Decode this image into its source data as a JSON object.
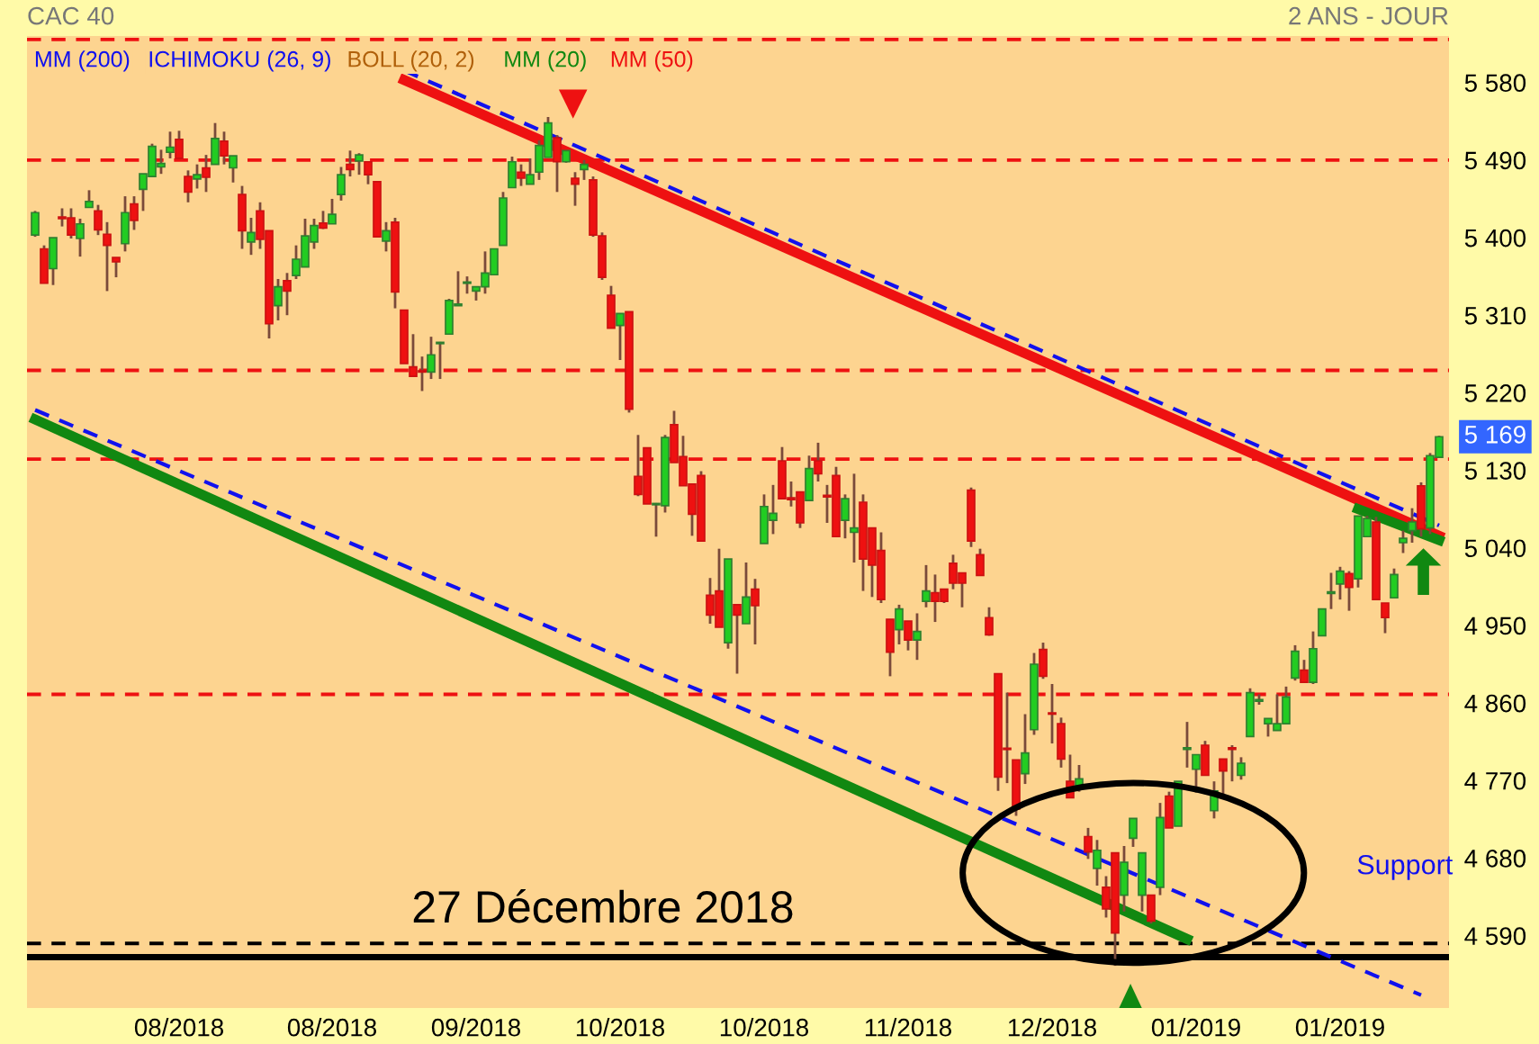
{
  "chart_data": {
    "type": "candlestick",
    "title": "CAC 40",
    "subtitle": "2 ANS - JOUR",
    "categories": [
      null,
      null,
      null,
      null,
      null,
      null,
      null,
      null,
      null,
      null,
      null,
      null,
      null,
      null,
      null,
      null,
      "08/2018",
      null,
      null,
      null,
      null,
      null,
      null,
      null,
      null,
      null,
      null,
      null,
      null,
      null,
      null,
      null,
      null,
      "08/2018",
      null,
      null,
      null,
      null,
      null,
      null,
      null,
      null,
      null,
      null,
      null,
      null,
      null,
      null,
      null,
      "09/2018",
      null,
      null,
      null,
      null,
      null,
      null,
      null,
      null,
      null,
      null,
      null,
      null,
      null,
      null,
      null,
      "10/2018",
      null,
      null,
      null,
      null,
      null,
      null,
      null,
      null,
      null,
      null,
      null,
      null,
      null,
      null,
      null,
      "10/2018",
      null,
      null,
      null,
      null,
      null,
      null,
      null,
      null,
      null,
      null,
      null,
      null,
      null,
      null,
      null,
      "11/2018",
      null,
      null,
      null,
      null,
      null,
      null,
      null,
      null,
      null,
      null,
      null,
      null,
      null,
      null,
      null,
      "12/2018",
      null,
      null,
      null,
      null,
      null,
      null,
      null,
      null,
      null,
      null,
      null,
      null,
      null,
      null,
      null,
      "01/2019",
      null,
      null,
      null,
      null,
      null,
      null,
      null,
      null,
      null,
      null,
      null,
      null,
      null,
      null,
      null,
      "01/2019",
      null,
      null,
      null,
      null,
      null,
      null,
      null,
      null,
      null,
      null,
      null
    ],
    "ohlc": [
      [
        5403,
        5431,
        5401,
        5429
      ],
      [
        5387,
        5391,
        5347,
        5347
      ],
      [
        5364,
        5400,
        5345,
        5400
      ],
      [
        5424,
        5434,
        5413,
        5422
      ],
      [
        5423,
        5434,
        5399,
        5403
      ],
      [
        5399,
        5422,
        5378,
        5416
      ],
      [
        5435,
        5455,
        5435,
        5442
      ],
      [
        5431,
        5438,
        5403,
        5409
      ],
      [
        5404,
        5418,
        5338,
        5391
      ],
      [
        5377,
        5377,
        5354,
        5372
      ],
      [
        5393,
        5448,
        5384,
        5429
      ],
      [
        5439,
        5448,
        5409,
        5420
      ],
      [
        5456,
        5474,
        5431,
        5474
      ],
      [
        5471,
        5509,
        5471,
        5506
      ],
      [
        5482,
        5502,
        5474,
        5486
      ],
      [
        5499,
        5523,
        5492,
        5505
      ],
      [
        5514,
        5524,
        5492,
        5492
      ],
      [
        5471,
        5478,
        5441,
        5453
      ],
      [
        5468,
        5485,
        5457,
        5473
      ],
      [
        5481,
        5496,
        5453,
        5470
      ],
      [
        5485,
        5533,
        5485,
        5515
      ],
      [
        5512,
        5523,
        5485,
        5495
      ],
      [
        5481,
        5495,
        5464,
        5495
      ],
      [
        5450,
        5460,
        5387,
        5408
      ],
      [
        5395,
        5423,
        5380,
        5406
      ],
      [
        5431,
        5441,
        5387,
        5398
      ],
      [
        5408,
        5408,
        5283,
        5300
      ],
      [
        5321,
        5352,
        5304,
        5343
      ],
      [
        5350,
        5359,
        5310,
        5338
      ],
      [
        5356,
        5391,
        5352,
        5375
      ],
      [
        5366,
        5422,
        5366,
        5402
      ],
      [
        5395,
        5422,
        5387,
        5414
      ],
      [
        5417,
        5431,
        5410,
        5411
      ],
      [
        5416,
        5445,
        5416,
        5427
      ],
      [
        5450,
        5482,
        5443,
        5473
      ],
      [
        5485,
        5501,
        5471,
        5479
      ],
      [
        5489,
        5498,
        5473,
        5496
      ],
      [
        5488,
        5488,
        5462,
        5473
      ],
      [
        5465,
        5465,
        5401,
        5401
      ],
      [
        5396,
        5418,
        5384,
        5408
      ],
      [
        5418,
        5423,
        5318,
        5337
      ],
      [
        5316,
        5316,
        5254,
        5254
      ],
      [
        5250,
        5288,
        5239,
        5239
      ],
      [
        5245,
        5262,
        5222,
        5244
      ],
      [
        5244,
        5285,
        5236,
        5264
      ],
      [
        5277,
        5279,
        5236,
        5278
      ],
      [
        5288,
        5329,
        5288,
        5327
      ],
      [
        5321,
        5361,
        5321,
        5323
      ],
      [
        5347,
        5355,
        5335,
        5348
      ],
      [
        5338,
        5343,
        5327,
        5343
      ],
      [
        5343,
        5384,
        5335,
        5359
      ],
      [
        5357,
        5387,
        5357,
        5387
      ],
      [
        5391,
        5453,
        5391,
        5446
      ],
      [
        5458,
        5494,
        5458,
        5488
      ],
      [
        5476,
        5485,
        5460,
        5469
      ],
      [
        5462,
        5492,
        5462,
        5473
      ],
      [
        5476,
        5513,
        5467,
        5507
      ],
      [
        5493,
        5540,
        5493,
        5533
      ],
      [
        5516,
        5519,
        5453,
        5488
      ],
      [
        5488,
        5501,
        5487,
        5501
      ],
      [
        5469,
        5476,
        5437,
        5462
      ],
      [
        5479,
        5490,
        5467,
        5485
      ],
      [
        5467,
        5471,
        5401,
        5403
      ],
      [
        5402,
        5406,
        5351,
        5354
      ],
      [
        5333,
        5344,
        5295,
        5295
      ],
      [
        5298,
        5312,
        5258,
        5312
      ],
      [
        5314,
        5314,
        5197,
        5201
      ],
      [
        5123,
        5171,
        5100,
        5102
      ],
      [
        5156,
        5156,
        5091,
        5091
      ],
      [
        5090,
        5092,
        5053,
        5091
      ],
      [
        5089,
        5171,
        5081,
        5168
      ],
      [
        5183,
        5199,
        5139,
        5139
      ],
      [
        5146,
        5170,
        5112,
        5112
      ],
      [
        5114,
        5114,
        5054,
        5079
      ],
      [
        5124,
        5129,
        5048,
        5048
      ],
      [
        4985,
        5005,
        4952,
        4962
      ],
      [
        4990,
        5039,
        4948,
        4948
      ],
      [
        4930,
        5027,
        4923,
        5027
      ],
      [
        4974,
        4974,
        4894,
        4962
      ],
      [
        4952,
        5023,
        4952,
        4983
      ],
      [
        4992,
        5004,
        4928,
        4973
      ],
      [
        5045,
        5102,
        5045,
        5088
      ],
      [
        5072,
        5113,
        5056,
        5080
      ],
      [
        5141,
        5157,
        5097,
        5097
      ],
      [
        5098,
        5117,
        5088,
        5096
      ],
      [
        5105,
        5105,
        5063,
        5069
      ],
      [
        5095,
        5147,
        5095,
        5132
      ],
      [
        5141,
        5162,
        5117,
        5126
      ],
      [
        5101,
        5113,
        5069,
        5099
      ],
      [
        5124,
        5134,
        5053,
        5053
      ],
      [
        5072,
        5102,
        5051,
        5097
      ],
      [
        5058,
        5126,
        5023,
        5063
      ],
      [
        5093,
        5102,
        4990,
        5027
      ],
      [
        5063,
        5063,
        4983,
        5020
      ],
      [
        5037,
        5058,
        4976,
        4980
      ],
      [
        4957,
        4957,
        4891,
        4919
      ],
      [
        4945,
        4974,
        4928,
        4969
      ],
      [
        4955,
        4955,
        4921,
        4933
      ],
      [
        4933,
        4964,
        4910,
        4943
      ],
      [
        4978,
        5020,
        4971,
        4990
      ],
      [
        4988,
        5009,
        4954,
        4978
      ],
      [
        4992,
        4992,
        4976,
        4978
      ],
      [
        5022,
        5032,
        4992,
        4999
      ],
      [
        5011,
        5011,
        4971,
        4999
      ],
      [
        5107,
        5110,
        5041,
        5048
      ],
      [
        5032,
        5039,
        5008,
        5008
      ],
      [
        4959,
        4971,
        4938,
        4939
      ],
      [
        4894,
        4894,
        4758,
        4774
      ],
      [
        4807,
        4872,
        4767,
        4806
      ],
      [
        4794,
        4794,
        4729,
        4737
      ],
      [
        4778,
        4847,
        4766,
        4802
      ],
      [
        4829,
        4918,
        4823,
        4905
      ],
      [
        4922,
        4930,
        4888,
        4891
      ],
      [
        4848,
        4882,
        4813,
        4847
      ],
      [
        4836,
        4843,
        4785,
        4795
      ],
      [
        4769,
        4800,
        4750,
        4750
      ],
      [
        4762,
        4788,
        4757,
        4772
      ],
      [
        4705,
        4715,
        4679,
        4687
      ],
      [
        4668,
        4701,
        4648,
        4689
      ],
      [
        4646,
        4659,
        4611,
        4621
      ],
      [
        4686,
        4686,
        4555,
        4593
      ],
      [
        4637,
        4694,
        4618,
        4675
      ],
      [
        4703,
        4726,
        4693,
        4726
      ],
      [
        4637,
        4686,
        4618,
        4686
      ],
      [
        4637,
        4637,
        4604,
        4607
      ],
      [
        4646,
        4744,
        4637,
        4727
      ],
      [
        4752,
        4757,
        4715,
        4715
      ],
      [
        4717,
        4769,
        4717,
        4769
      ],
      [
        4806,
        4838,
        4785,
        4808
      ],
      [
        4783,
        4800,
        4756,
        4800
      ],
      [
        4811,
        4816,
        4776,
        4776
      ],
      [
        4735,
        4769,
        4726,
        4758
      ],
      [
        4795,
        4795,
        4752,
        4781
      ],
      [
        4808,
        4811,
        4769,
        4806
      ],
      [
        4776,
        4797,
        4771,
        4790
      ],
      [
        4821,
        4877,
        4821,
        4872
      ],
      [
        4862,
        4870,
        4858,
        4864
      ],
      [
        4836,
        4842,
        4821,
        4842
      ],
      [
        4828,
        4870,
        4828,
        4836
      ],
      [
        4836,
        4879,
        4836,
        4867
      ],
      [
        4889,
        4927,
        4886,
        4920
      ],
      [
        4898,
        4910,
        4884,
        4884
      ],
      [
        4884,
        4943,
        4882,
        4923
      ],
      [
        4938,
        4969,
        4938,
        4969
      ],
      [
        4987,
        5011,
        4969,
        4989
      ],
      [
        4998,
        5018,
        4980,
        5013
      ],
      [
        5010,
        5013,
        4967,
        4994
      ],
      [
        5004,
        5077,
        4994,
        5077
      ],
      [
        5053,
        5077,
        5053,
        5074
      ],
      [
        5070,
        5076,
        4980,
        4980
      ],
      [
        4976,
        4976,
        4941,
        4959
      ],
      [
        4982,
        5016,
        4982,
        5009
      ],
      [
        5046,
        5060,
        5034,
        5051
      ],
      [
        5060,
        5086,
        5046,
        5070
      ],
      [
        5112,
        5116,
        5053,
        5062
      ],
      [
        5063,
        5150,
        5056,
        5147
      ],
      [
        5145,
        5170,
        5145,
        5169
      ]
    ],
    "series": [
      {
        "type": "line",
        "color": "#ee1111",
        "line_style": "solid",
        "values": [
          null,
          null,
          null,
          null,
          null,
          null,
          null,
          null,
          null,
          null,
          null,
          null,
          null,
          null,
          null,
          null,
          null,
          null,
          null,
          null,
          null,
          null,
          null,
          null,
          null,
          null,
          null,
          null,
          null,
          null,
          null,
          null,
          null,
          null,
          null,
          null,
          null,
          null,
          null,
          null,
          null,
          5583,
          null,
          null,
          null,
          null,
          null,
          null,
          null,
          null,
          null,
          null,
          null,
          null,
          null,
          null,
          null,
          null,
          null,
          null,
          null,
          null,
          null,
          null,
          null,
          null,
          null,
          null,
          null,
          null,
          null,
          null,
          null,
          null,
          null,
          null,
          null,
          null,
          null,
          null,
          null,
          null,
          null,
          null,
          null,
          null,
          null,
          null,
          null,
          null,
          null,
          null,
          null,
          null,
          null,
          null,
          null,
          null,
          null,
          null,
          null,
          null,
          null,
          null,
          null,
          null,
          null,
          null,
          null,
          null,
          null,
          null,
          null,
          null,
          null,
          null,
          null,
          null,
          null,
          null,
          null,
          null,
          null,
          null,
          null,
          null,
          null,
          null,
          null,
          null,
          null,
          null,
          null,
          null,
          null,
          null,
          null,
          null,
          null,
          null,
          null,
          null,
          null,
          null,
          null,
          null,
          null,
          null,
          null,
          null,
          null,
          null,
          null,
          null,
          null,
          null,
          5054
        ]
      },
      {
        "type": "line",
        "color": "#1111ee",
        "line_style": "dashed",
        "values": [
          null,
          null,
          null,
          null,
          null,
          null,
          null,
          null,
          null,
          null,
          null,
          null,
          null,
          null,
          null,
          null,
          null,
          null,
          null,
          null,
          null,
          null,
          null,
          null,
          null,
          null,
          null,
          null,
          null,
          null,
          null,
          null,
          null,
          null,
          null,
          null,
          null,
          null,
          null,
          null,
          null,
          5594,
          null,
          null,
          null,
          null,
          null,
          null,
          null,
          null,
          null,
          null,
          null,
          null,
          null,
          null,
          null,
          null,
          null,
          null,
          null,
          null,
          null,
          null,
          null,
          null,
          null,
          null,
          null,
          null,
          null,
          null,
          null,
          null,
          null,
          null,
          null,
          null,
          null,
          null,
          null,
          null,
          null,
          null,
          null,
          null,
          null,
          null,
          null,
          null,
          null,
          null,
          null,
          null,
          null,
          null,
          null,
          null,
          null,
          null,
          null,
          null,
          null,
          null,
          null,
          null,
          null,
          null,
          null,
          null,
          null,
          null,
          null,
          null,
          null,
          null,
          null,
          null,
          null,
          null,
          null,
          null,
          null,
          null,
          null,
          null,
          null,
          null,
          null,
          null,
          null,
          null,
          null,
          null,
          null,
          null,
          null,
          null,
          null,
          null,
          null,
          null,
          null,
          null,
          null,
          null,
          null,
          null,
          null,
          null,
          null,
          null,
          null,
          null,
          null,
          null,
          5066
        ]
      },
      {
        "type": "line",
        "color": "#118811",
        "line_style": "solid",
        "values": [
          5189,
          null,
          null,
          null,
          null,
          null,
          null,
          null,
          null,
          null,
          null,
          null,
          null,
          null,
          null,
          null,
          null,
          null,
          null,
          null,
          null,
          null,
          null,
          null,
          null,
          null,
          null,
          null,
          null,
          null,
          null,
          null,
          null,
          null,
          null,
          null,
          null,
          null,
          null,
          null,
          null,
          null,
          null,
          null,
          null,
          null,
          null,
          null,
          null,
          null,
          null,
          null,
          null,
          null,
          null,
          null,
          null,
          null,
          null,
          null,
          null,
          null,
          null,
          null,
          null,
          null,
          null,
          null,
          null,
          null,
          null,
          null,
          null,
          null,
          null,
          null,
          null,
          null,
          null,
          null,
          null,
          null,
          null,
          null,
          null,
          null,
          null,
          null,
          null,
          null,
          null,
          null,
          null,
          null,
          null,
          null,
          null,
          null,
          null,
          null,
          null,
          null,
          null,
          null,
          null,
          null,
          null,
          null,
          null,
          null,
          null,
          null,
          null,
          null,
          null,
          null,
          null,
          null,
          null,
          null,
          null,
          null,
          null,
          null,
          null,
          null,
          null,
          null,
          4586,
          null,
          null,
          null,
          null,
          null,
          null,
          null,
          null,
          null,
          null,
          null,
          null,
          null,
          null,
          null,
          null,
          null,
          null,
          null,
          null,
          null,
          null,
          null,
          null,
          null,
          null,
          null,
          null
        ]
      },
      {
        "type": "line",
        "color": "#1111ee",
        "line_style": "dashed",
        "values": [
          5200,
          null,
          null,
          null,
          null,
          null,
          null,
          null,
          null,
          null,
          null,
          null,
          null,
          null,
          null,
          null,
          null,
          null,
          null,
          null,
          null,
          null,
          null,
          null,
          null,
          null,
          null,
          null,
          null,
          null,
          null,
          null,
          null,
          null,
          null,
          null,
          null,
          null,
          null,
          null,
          null,
          null,
          null,
          null,
          null,
          null,
          null,
          null,
          null,
          null,
          null,
          null,
          null,
          null,
          null,
          null,
          null,
          null,
          null,
          null,
          null,
          null,
          null,
          null,
          null,
          null,
          null,
          null,
          null,
          null,
          null,
          null,
          null,
          null,
          null,
          null,
          null,
          null,
          null,
          null,
          null,
          null,
          null,
          null,
          null,
          null,
          null,
          null,
          null,
          null,
          null,
          null,
          null,
          null,
          null,
          null,
          null,
          null,
          null,
          null,
          null,
          null,
          null,
          null,
          null,
          null,
          null,
          null,
          null,
          null,
          null,
          null,
          null,
          null,
          null,
          null,
          null,
          null,
          null,
          null,
          null,
          null,
          null,
          null,
          null,
          null,
          null,
          null,
          null,
          null,
          null,
          null,
          null,
          null,
          null,
          null,
          null,
          null,
          null,
          null,
          null,
          null,
          null,
          null,
          null,
          null,
          null,
          null,
          null,
          null,
          null,
          null,
          null,
          null,
          4521,
          null,
          null
        ]
      },
      {
        "type": "line",
        "color": "#118811",
        "line_style": "solid",
        "values": [
          null,
          null,
          null,
          null,
          null,
          null,
          null,
          null,
          null,
          null,
          null,
          null,
          null,
          null,
          null,
          null,
          null,
          null,
          null,
          null,
          null,
          null,
          null,
          null,
          null,
          null,
          null,
          null,
          null,
          null,
          null,
          null,
          null,
          null,
          null,
          null,
          null,
          null,
          null,
          null,
          null,
          null,
          null,
          null,
          null,
          null,
          null,
          null,
          null,
          null,
          null,
          null,
          null,
          null,
          null,
          null,
          null,
          null,
          null,
          null,
          null,
          null,
          null,
          null,
          null,
          null,
          null,
          null,
          null,
          null,
          null,
          null,
          null,
          null,
          null,
          null,
          null,
          null,
          null,
          null,
          null,
          null,
          null,
          null,
          null,
          null,
          null,
          null,
          null,
          null,
          null,
          null,
          null,
          null,
          null,
          null,
          null,
          null,
          null,
          null,
          null,
          null,
          null,
          null,
          null,
          null,
          null,
          null,
          null,
          null,
          null,
          null,
          null,
          null,
          null,
          null,
          null,
          null,
          null,
          null,
          null,
          null,
          null,
          null,
          null,
          null,
          null,
          null,
          null,
          null,
          null,
          null,
          null,
          null,
          null,
          null,
          null,
          null,
          null,
          null,
          null,
          null,
          null,
          null,
          null,
          null,
          null,
          5085,
          null,
          null,
          null,
          null,
          null,
          null,
          null,
          null,
          5049
        ]
      }
    ],
    "ylim": [
      4506,
      5634
    ],
    "yticks": [
      {
        "value": 4590,
        "label": "4 590"
      },
      {
        "value": 4680,
        "label": "4 680"
      },
      {
        "value": 4770,
        "label": "4 770"
      },
      {
        "value": 4860,
        "label": "4 860"
      },
      {
        "value": 4950,
        "label": "4 950"
      },
      {
        "value": 5040,
        "label": "5 040"
      },
      {
        "value": 5130,
        "label": "5 130"
      },
      {
        "value": 5220,
        "label": "5 220"
      },
      {
        "value": 5310,
        "label": "5 310"
      },
      {
        "value": 5400,
        "label": "5 400"
      },
      {
        "value": 5490,
        "label": "5 490"
      },
      {
        "value": 5580,
        "label": "5 580"
      }
    ],
    "ref_lines": [
      {
        "axis": "y",
        "value": 5630,
        "color": "#ee1111",
        "line_style": "dashed"
      },
      {
        "axis": "y",
        "value": 5490,
        "color": "#ee1111",
        "line_style": "dashed"
      },
      {
        "axis": "y",
        "value": 5246,
        "color": "#ee1111",
        "line_style": "dashed"
      },
      {
        "axis": "y",
        "value": 5143,
        "color": "#ee1111",
        "line_style": "dashed"
      },
      {
        "axis": "y",
        "value": 4870,
        "color": "#ee1111",
        "line_style": "dashed"
      },
      {
        "axis": "y",
        "value": 4581,
        "color": "#000000",
        "line_style": "dashed"
      },
      {
        "axis": "y",
        "value": 4565,
        "color": "#000000",
        "line_style": "solid"
      }
    ],
    "annotations": [
      "MM (200)",
      "ICHIMOKU (26, 9)",
      "BOLL (20, 2)",
      "MM (20)",
      "MM (50)",
      "27 Décembre 2018",
      "Support",
      "5 169"
    ],
    "grid": false
  }
}
